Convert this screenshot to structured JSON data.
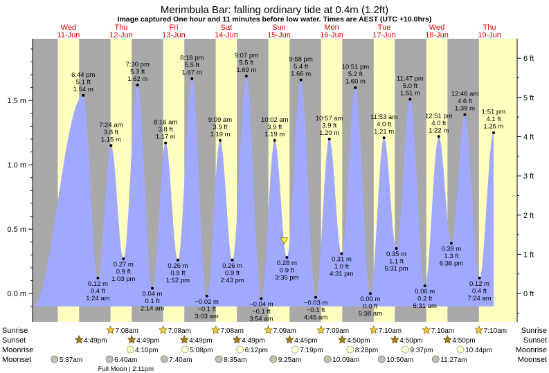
{
  "chart_data": {
    "type": "area",
    "title": "Merimbula Bar: falling  ordinary tide at 0.4m (1.2ft)",
    "subtitle": "Image captured One hour and 11 minutes before low water. Times are AEST (UTC +10.0hrs)",
    "y_left_unit": "m",
    "y_right_unit": "ft",
    "y_left_ticks": [
      0.0,
      0.5,
      1.0,
      1.5
    ],
    "y_left_tick_labels": [
      "0.0 m",
      "0.5 m",
      "1.0 m",
      "1.5 m"
    ],
    "y_right_ticks": [
      0,
      1,
      2,
      3,
      4,
      5,
      6
    ],
    "y_right_tick_labels": [
      "0 ft",
      "1 ft",
      "2 ft",
      "3 ft",
      "4 ft",
      "5 ft",
      "6 ft"
    ],
    "ylim": [
      -0.22,
      1.98
    ],
    "x_range_hours": [
      -4.4,
      216.6
    ],
    "x_axis_note": "x values are hours after 00:00 on Wed 11-Jun (AEST)",
    "days": [
      {
        "weekday": "Wed",
        "date": "11-Jun",
        "noon": 12
      },
      {
        "weekday": "Thu",
        "date": "12-Jun",
        "noon": 36
      },
      {
        "weekday": "Fri",
        "date": "13-Jun",
        "noon": 60
      },
      {
        "weekday": "Sat",
        "date": "14-Jun",
        "noon": 84
      },
      {
        "weekday": "Sun",
        "date": "15-Jun",
        "noon": 108
      },
      {
        "weekday": "Mon",
        "date": "16-Jun",
        "noon": 132
      },
      {
        "weekday": "Tue",
        "date": "17-Jun",
        "noon": 156
      },
      {
        "weekday": "Wed",
        "date": "18-Jun",
        "noon": 180
      },
      {
        "weekday": "Thu",
        "date": "19-Jun",
        "noon": 204
      }
    ],
    "night_bands": [
      [
        -4.4,
        7.13
      ],
      [
        16.82,
        31.13
      ],
      [
        40.82,
        55.13
      ],
      [
        64.82,
        79.15
      ],
      [
        88.82,
        103.15
      ],
      [
        112.83,
        127.17
      ],
      [
        136.83,
        151.17
      ],
      [
        160.83,
        175.17
      ],
      [
        184.83,
        199.17
      ]
    ],
    "tides": [
      {
        "x": 18.733,
        "y": 1.54,
        "time": "6:44 pm",
        "ft": "5.1 ft",
        "m": "1.54 m",
        "type": "high"
      },
      {
        "x": 25.4,
        "y": 0.12,
        "time": "1:24 am",
        "ft": "0.4 ft",
        "m": "0.12 m",
        "type": "low"
      },
      {
        "x": 31.4,
        "y": 1.15,
        "time": "7:24 am",
        "ft": "3.8 ft",
        "m": "1.15 m",
        "type": "high"
      },
      {
        "x": 37.05,
        "y": 0.27,
        "time": "1:03 pm",
        "ft": "0.9 ft",
        "m": "0.27 m",
        "type": "low"
      },
      {
        "x": 43.5,
        "y": 1.62,
        "time": "7:30 pm",
        "ft": "5.3 ft",
        "m": "1.62 m",
        "type": "high"
      },
      {
        "x": 50.233,
        "y": 0.04,
        "time": "2:14 am",
        "ft": "0.1 ft",
        "m": "0.04 m",
        "type": "low"
      },
      {
        "x": 56.267,
        "y": 1.17,
        "time": "8:16 am",
        "ft": "3.8 ft",
        "m": "1.17 m",
        "type": "high"
      },
      {
        "x": 61.867,
        "y": 0.26,
        "time": "1:52 pm",
        "ft": "0.9 ft",
        "m": "0.26 m",
        "type": "low"
      },
      {
        "x": 68.3,
        "y": 1.67,
        "time": "8:18 pm",
        "ft": "5.5 ft",
        "m": "1.67 m",
        "type": "high"
      },
      {
        "x": 75.05,
        "y": -0.02,
        "time": "3:03 am",
        "ft": "−0.1 ft",
        "m": "−0.02 m",
        "type": "low"
      },
      {
        "x": 81.15,
        "y": 1.19,
        "time": "9:09 am",
        "ft": "3.9 ft",
        "m": "1.19 m",
        "type": "high"
      },
      {
        "x": 86.717,
        "y": 0.26,
        "time": "2:43 pm",
        "ft": "0.9 ft",
        "m": "0.26 m",
        "type": "low"
      },
      {
        "x": 93.117,
        "y": 1.69,
        "time": "9:07 pm",
        "ft": "5.5 ft",
        "m": "1.69 m",
        "type": "high"
      },
      {
        "x": 99.9,
        "y": -0.04,
        "time": "3:54 am",
        "ft": "−0.1 ft",
        "m": "−0.04 m",
        "type": "low"
      },
      {
        "x": 106.033,
        "y": 1.19,
        "time": "10:02 am",
        "ft": "3.9 ft",
        "m": "1.19 m",
        "type": "high"
      },
      {
        "x": 111.583,
        "y": 0.28,
        "time": "3:35 pm",
        "ft": "0.9 ft",
        "m": "0.28 m",
        "type": "low"
      },
      {
        "x": 117.967,
        "y": 1.66,
        "time": "9:58 pm",
        "ft": "5.4 ft",
        "m": "1.66 m",
        "type": "high"
      },
      {
        "x": 124.75,
        "y": -0.03,
        "time": "4:45 am",
        "ft": "−0.1 ft",
        "m": "−0.03 m",
        "type": "low"
      },
      {
        "x": 130.95,
        "y": 1.2,
        "time": "10:57 am",
        "ft": "3.9 ft",
        "m": "1.20 m",
        "type": "high"
      },
      {
        "x": 136.517,
        "y": 0.31,
        "time": "4:31 pm",
        "ft": "1.0 ft",
        "m": "0.31 m",
        "type": "low"
      },
      {
        "x": 142.85,
        "y": 1.6,
        "time": "10:51 pm",
        "ft": "5.2 ft",
        "m": "1.60 m",
        "type": "high"
      },
      {
        "x": 149.633,
        "y": 0.0,
        "time": "5:38 am",
        "ft": "0.0 ft",
        "m": "0.00 m",
        "type": "low"
      },
      {
        "x": 155.883,
        "y": 1.21,
        "time": "11:53 am",
        "ft": "4.0 ft",
        "m": "1.21 m",
        "type": "high"
      },
      {
        "x": 161.517,
        "y": 0.35,
        "time": "5:31 pm",
        "ft": "1.1 ft",
        "m": "0.35 m",
        "type": "low"
      },
      {
        "x": 167.783,
        "y": 1.51,
        "time": "11:47 pm",
        "ft": "5.0 ft",
        "m": "1.51 m",
        "type": "high"
      },
      {
        "x": 174.517,
        "y": 0.06,
        "time": "6:31 am",
        "ft": "0.2 ft",
        "m": "0.06 m",
        "type": "low"
      },
      {
        "x": 180.85,
        "y": 1.22,
        "time": "12:51 pm",
        "ft": "4.0 ft",
        "m": "1.22 m",
        "type": "high"
      },
      {
        "x": 186.6,
        "y": 0.39,
        "time": "6:36 pm",
        "ft": "1.3 ft",
        "m": "0.39 m",
        "type": "low"
      },
      {
        "x": 192.767,
        "y": 1.39,
        "time": "12:46 am",
        "ft": "4.6 ft",
        "m": "1.39 m",
        "type": "high"
      },
      {
        "x": 199.4,
        "y": 0.12,
        "time": "7:24 am",
        "ft": "0.4 ft",
        "m": "0.12 m",
        "type": "low"
      },
      {
        "x": 205.85,
        "y": 1.25,
        "time": "1:51 pm",
        "ft": "4.1 ft",
        "m": "1.25 m",
        "type": "high"
      }
    ],
    "curve_start": {
      "x": -4.4,
      "y": -0.1
    },
    "curve_end": {
      "x": 205.85,
      "y": 1.25
    },
    "current_marker": {
      "x": 110.4,
      "y": 0.4
    },
    "colors": {
      "tide_fill": "#a0a8ff",
      "day_bg": "#ffffc0",
      "night_bg": "#a8a8a8",
      "accent_red": "#e00000",
      "grid": "#000000"
    },
    "bottom_rows": {
      "labels_left": [
        "Sunrise",
        "Sunset",
        "Moonrise",
        "Moonset"
      ],
      "labels_right": [
        "Sunrise",
        "Sunset",
        "Moonrise",
        "Moonset"
      ],
      "sunrise": [
        {
          "x": 31.133,
          "time": "7:08am"
        },
        {
          "x": 55.133,
          "time": "7:08am"
        },
        {
          "x": 79.133,
          "time": "7:08am"
        },
        {
          "x": 103.15,
          "time": "7:09am"
        },
        {
          "x": 127.15,
          "time": "7:09am"
        },
        {
          "x": 151.167,
          "time": "7:10am"
        },
        {
          "x": 175.167,
          "time": "7:10am"
        },
        {
          "x": 199.167,
          "time": "7:10am"
        }
      ],
      "sunset": [
        {
          "x": 16.817,
          "time": "4:49pm"
        },
        {
          "x": 40.817,
          "time": "4:49pm"
        },
        {
          "x": 64.817,
          "time": "4:49pm"
        },
        {
          "x": 88.817,
          "time": "4:49pm"
        },
        {
          "x": 112.817,
          "time": "4:49pm"
        },
        {
          "x": 136.833,
          "time": "4:50pm"
        },
        {
          "x": 160.833,
          "time": "4:50pm"
        },
        {
          "x": 184.833,
          "time": "4:50pm"
        }
      ],
      "moonrise": [
        {
          "x": 40.167,
          "time": "4:10pm"
        },
        {
          "x": 65.133,
          "time": "5:08pm"
        },
        {
          "x": 90.2,
          "time": "6:12pm"
        },
        {
          "x": 115.317,
          "time": "7:19pm"
        },
        {
          "x": 140.467,
          "time": "8:28pm"
        },
        {
          "x": 165.617,
          "time": "9:37pm"
        },
        {
          "x": 190.733,
          "time": "10:44pm"
        }
      ],
      "moonset": [
        {
          "x": 5.617,
          "time": "5:37am"
        },
        {
          "x": 30.667,
          "time": "6:40am"
        },
        {
          "x": 55.667,
          "time": "7:40am"
        },
        {
          "x": 80.583,
          "time": "8:35am"
        },
        {
          "x": 105.417,
          "time": "9:25am"
        },
        {
          "x": 130.15,
          "time": "10:09am"
        },
        {
          "x": 154.833,
          "time": "10:50am"
        },
        {
          "x": 179.45,
          "time": "11:27am"
        }
      ],
      "full_moon_label": "Full Moon | 2:11pm",
      "full_moon_x": 38.183
    }
  }
}
